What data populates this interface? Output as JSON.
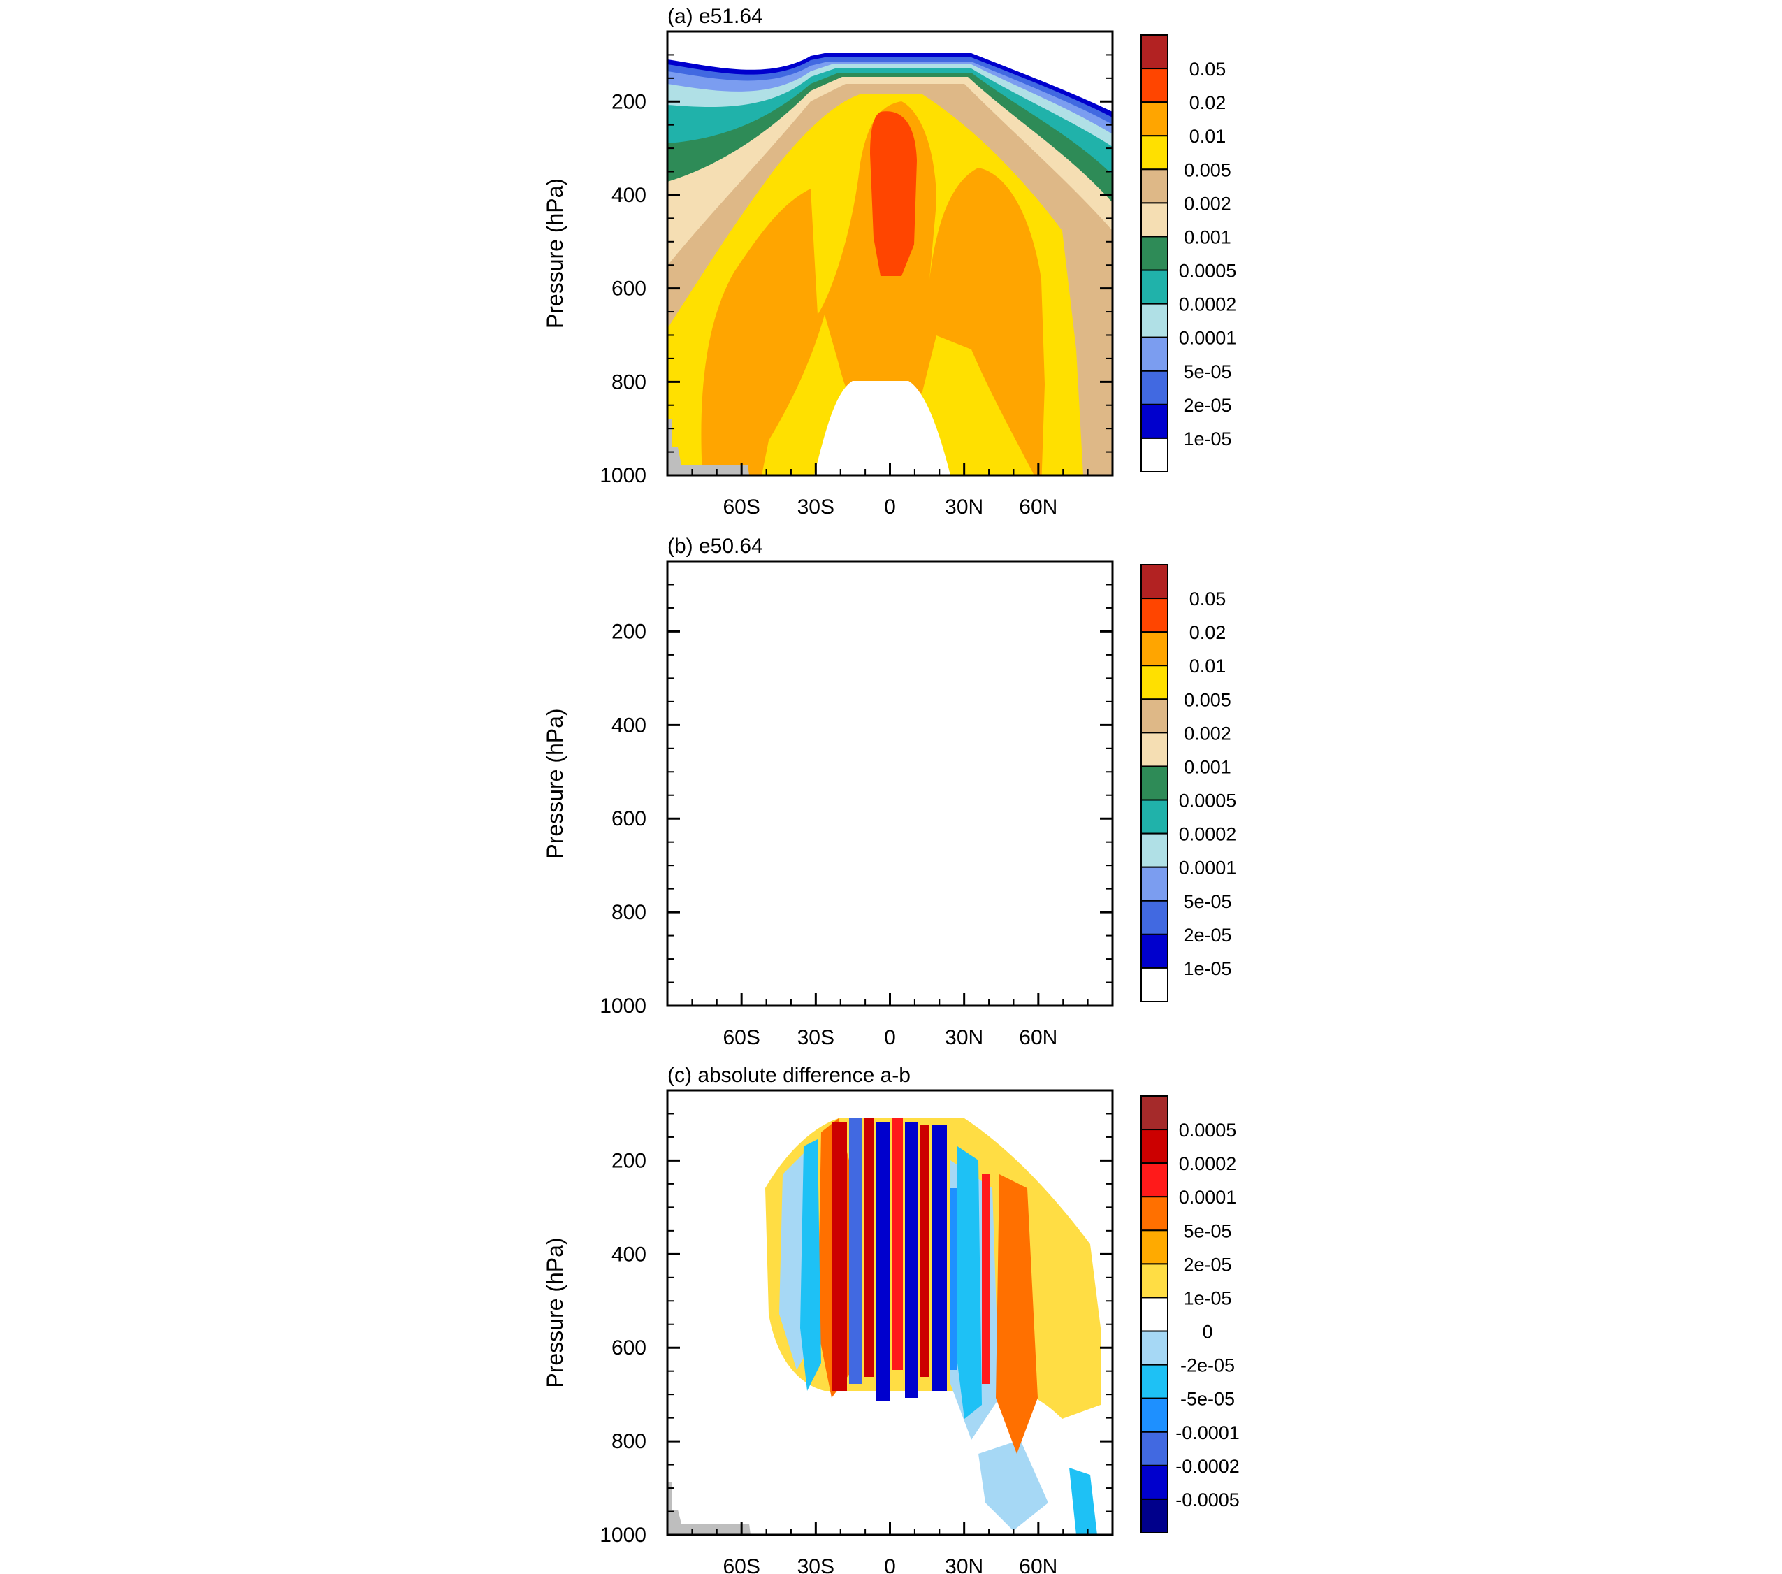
{
  "chart_data": [
    {
      "type": "contour",
      "title": "(a) e51.64",
      "ylabel": "Pressure (hPa)",
      "xlabel": "",
      "x_range": [
        -90,
        90
      ],
      "y_range": [
        50,
        1000
      ],
      "y_ticks": [
        200,
        400,
        600,
        800,
        1000
      ],
      "y_tick_labels": [
        "200",
        "400",
        "600",
        "800",
        "1000"
      ],
      "x_ticks": [
        -60,
        -30,
        0,
        30,
        60
      ],
      "x_tick_labels": [
        "60S",
        "30S",
        "0",
        "30N",
        "60N"
      ],
      "colorbar": {
        "levels": [
          "0.05",
          "0.02",
          "0.01",
          "0.005",
          "0.002",
          "0.001",
          "0.0005",
          "0.0002",
          "0.0001",
          "5e-05",
          "2e-05",
          "1e-05"
        ],
        "colors": [
          "#b22222",
          "#ff4500",
          "#ffa500",
          "#ffe000",
          "#deb887",
          "#f5deb3",
          "#2e8b57",
          "#20b2aa",
          "#b0e0e6",
          "#7b9df0",
          "#4169e1",
          "#0000cd",
          "#ffffff"
        ]
      }
    },
    {
      "type": "contour",
      "title": "(b) e50.64",
      "ylabel": "Pressure (hPa)",
      "xlabel": "",
      "x_range": [
        -90,
        90
      ],
      "y_range": [
        50,
        1000
      ],
      "y_ticks": [
        200,
        400,
        600,
        800,
        1000
      ],
      "y_tick_labels": [
        "200",
        "400",
        "600",
        "800",
        "1000"
      ],
      "x_ticks": [
        -60,
        -30,
        0,
        30,
        60
      ],
      "x_tick_labels": [
        "60S",
        "30S",
        "0",
        "30N",
        "60N"
      ],
      "colorbar": {
        "levels": [
          "0.05",
          "0.02",
          "0.01",
          "0.005",
          "0.002",
          "0.001",
          "0.0005",
          "0.0002",
          "0.0001",
          "5e-05",
          "2e-05",
          "1e-05"
        ],
        "colors": [
          "#b22222",
          "#ff4500",
          "#ffa500",
          "#ffe000",
          "#deb887",
          "#f5deb3",
          "#2e8b57",
          "#20b2aa",
          "#b0e0e6",
          "#7b9df0",
          "#4169e1",
          "#0000cd",
          "#ffffff"
        ]
      }
    },
    {
      "type": "contour",
      "title": "(c) absolute difference a-b",
      "ylabel": "Pressure (hPa)",
      "xlabel": "",
      "x_range": [
        -90,
        90
      ],
      "y_range": [
        50,
        1000
      ],
      "y_ticks": [
        200,
        400,
        600,
        800,
        1000
      ],
      "y_tick_labels": [
        "200",
        "400",
        "600",
        "800",
        "1000"
      ],
      "x_ticks": [
        -60,
        -30,
        0,
        30,
        60
      ],
      "x_tick_labels": [
        "60S",
        "30S",
        "0",
        "30N",
        "60N"
      ],
      "colorbar": {
        "levels": [
          "0.0005",
          "0.0002",
          "0.0001",
          "5e-05",
          "2e-05",
          "1e-05",
          "0",
          "-2e-05",
          "-5e-05",
          "-0.0001",
          "-0.0002",
          "-0.0005"
        ],
        "colors": [
          "#a52a2a",
          "#cc0000",
          "#ff1a1a",
          "#ff7000",
          "#ffaa00",
          "#ffdd44",
          "#ffffff",
          "#a6d8f5",
          "#1ec1f5",
          "#1e90ff",
          "#4169e1",
          "#0000cd",
          "#00008b"
        ]
      }
    }
  ]
}
